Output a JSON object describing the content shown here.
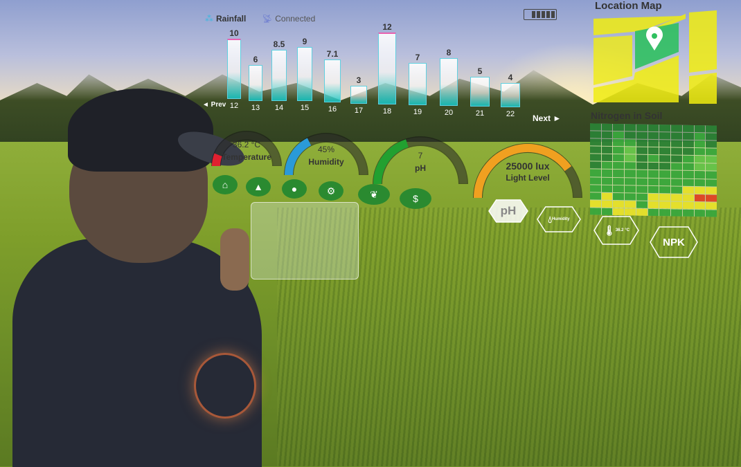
{
  "hud": {
    "legend_rainfall": "Rainfall",
    "legend_connected": "Connected",
    "battery_icon": "battery-icon",
    "prev_label": "◄ Prev",
    "next_label": "Next ►",
    "rainfall_chart": {
      "days": [
        "12",
        "13",
        "14",
        "15",
        "16",
        "17",
        "18",
        "19",
        "20",
        "21",
        "22"
      ],
      "values": [
        10,
        6,
        8.5,
        9,
        7.1,
        3,
        12,
        7,
        8,
        5,
        4
      ],
      "value_labels": [
        "10",
        "6",
        "8.5",
        "9",
        "7.1",
        "3",
        "12",
        "7",
        "8",
        "5",
        "4"
      ],
      "max": 12
    },
    "gauges": [
      {
        "label": "Temperature",
        "value": "36.2 °C",
        "fill": 0.12,
        "color": "#e02030"
      },
      {
        "label": "Humidity",
        "value": "45%",
        "fill": 0.35,
        "color": "#2a9ad8"
      },
      {
        "label": "pH",
        "value": "7",
        "fill": 0.4,
        "color": "#22a030"
      },
      {
        "label": "Light Level",
        "value": "25000 lux",
        "fill": 0.8,
        "color": "#f0a020"
      }
    ],
    "icon_buttons": [
      "home-icon",
      "image-icon",
      "location-pin-icon",
      "gears-icon",
      "leaf-icon",
      "dollar-icon"
    ],
    "hex_badges": [
      {
        "label": "pH",
        "icon": ""
      },
      {
        "label": "Humidity",
        "icon": "droplet-icon"
      },
      {
        "label": "36.2 °C",
        "icon": "thermometer-icon"
      },
      {
        "label": "NPK",
        "icon": ""
      }
    ],
    "location_map_title": "Location Map",
    "nitrogen_title": "Nitrogen in Soil",
    "nitrogen_heatmap": [
      [
        0,
        0,
        0,
        0,
        0,
        0,
        0,
        0,
        0,
        0,
        0
      ],
      [
        0,
        0,
        1,
        0,
        0,
        0,
        0,
        0,
        0,
        1,
        0
      ],
      [
        0,
        0,
        1,
        1,
        0,
        0,
        0,
        0,
        0,
        1,
        0
      ],
      [
        0,
        0,
        1,
        2,
        0,
        0,
        0,
        0,
        0,
        1,
        1
      ],
      [
        0,
        0,
        1,
        2,
        0,
        1,
        0,
        0,
        1,
        2,
        2
      ],
      [
        0,
        1,
        1,
        1,
        0,
        0,
        0,
        1,
        1,
        2,
        2
      ],
      [
        1,
        1,
        1,
        1,
        1,
        1,
        1,
        1,
        1,
        1,
        1
      ],
      [
        1,
        1,
        1,
        1,
        1,
        1,
        1,
        1,
        1,
        1,
        1
      ],
      [
        1,
        1,
        1,
        1,
        1,
        1,
        1,
        1,
        3,
        3,
        3
      ],
      [
        1,
        3,
        1,
        1,
        1,
        3,
        3,
        3,
        3,
        4,
        4
      ],
      [
        3,
        3,
        3,
        3,
        1,
        3,
        3,
        3,
        3,
        3,
        3
      ],
      [
        1,
        1,
        3,
        3,
        3,
        1,
        1,
        1,
        1,
        1,
        1
      ]
    ],
    "heat_colors": [
      "#1f7a2a",
      "#2fa232",
      "#5cc040",
      "#e8e020",
      "#e03a1a"
    ],
    "colors": {
      "map_yellow": "#f0ec10",
      "map_green": "#30c060",
      "bar_cyan": "#20d0d0"
    }
  }
}
